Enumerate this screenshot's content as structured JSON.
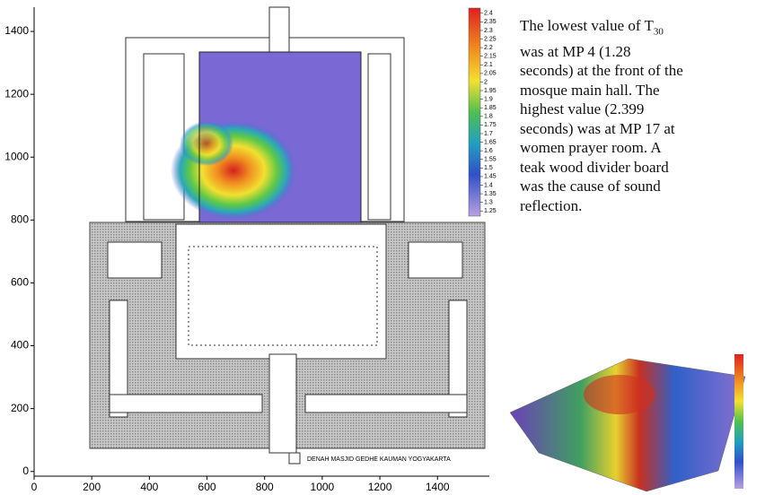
{
  "chart_data": {
    "type": "contour",
    "xlim": [
      0,
      1580
    ],
    "ylim": [
      -15,
      1500
    ],
    "xticks": [
      0,
      200,
      400,
      600,
      800,
      1000,
      1200,
      1400
    ],
    "yticks": [
      0,
      200,
      400,
      600,
      800,
      1000,
      1200,
      1400
    ],
    "colorbar": {
      "lim": [
        1.22,
        2.43
      ],
      "ticks": [
        2.4,
        2.35,
        2.3,
        2.25,
        2.2,
        2.15,
        2.1,
        2.05,
        2,
        1.95,
        1.9,
        1.85,
        1.8,
        1.75,
        1.7,
        1.65,
        1.6,
        1.55,
        1.5,
        1.45,
        1.4,
        1.35,
        1.3,
        1.25
      ]
    },
    "plan_label": "DENAH MASJID GEDHE KAUMAN YOGYAKARTA"
  },
  "text": {
    "first": "The lowest value of T",
    "sub": "30",
    "lines": [
      "was at MP 4 (1.28",
      "seconds) at the front of the",
      "mosque main hall. The",
      "highest value (2.399",
      "seconds) was at MP 17 at",
      "women prayer room. A",
      "teak wood divider board",
      "was the cause of sound",
      "reflection."
    ]
  }
}
